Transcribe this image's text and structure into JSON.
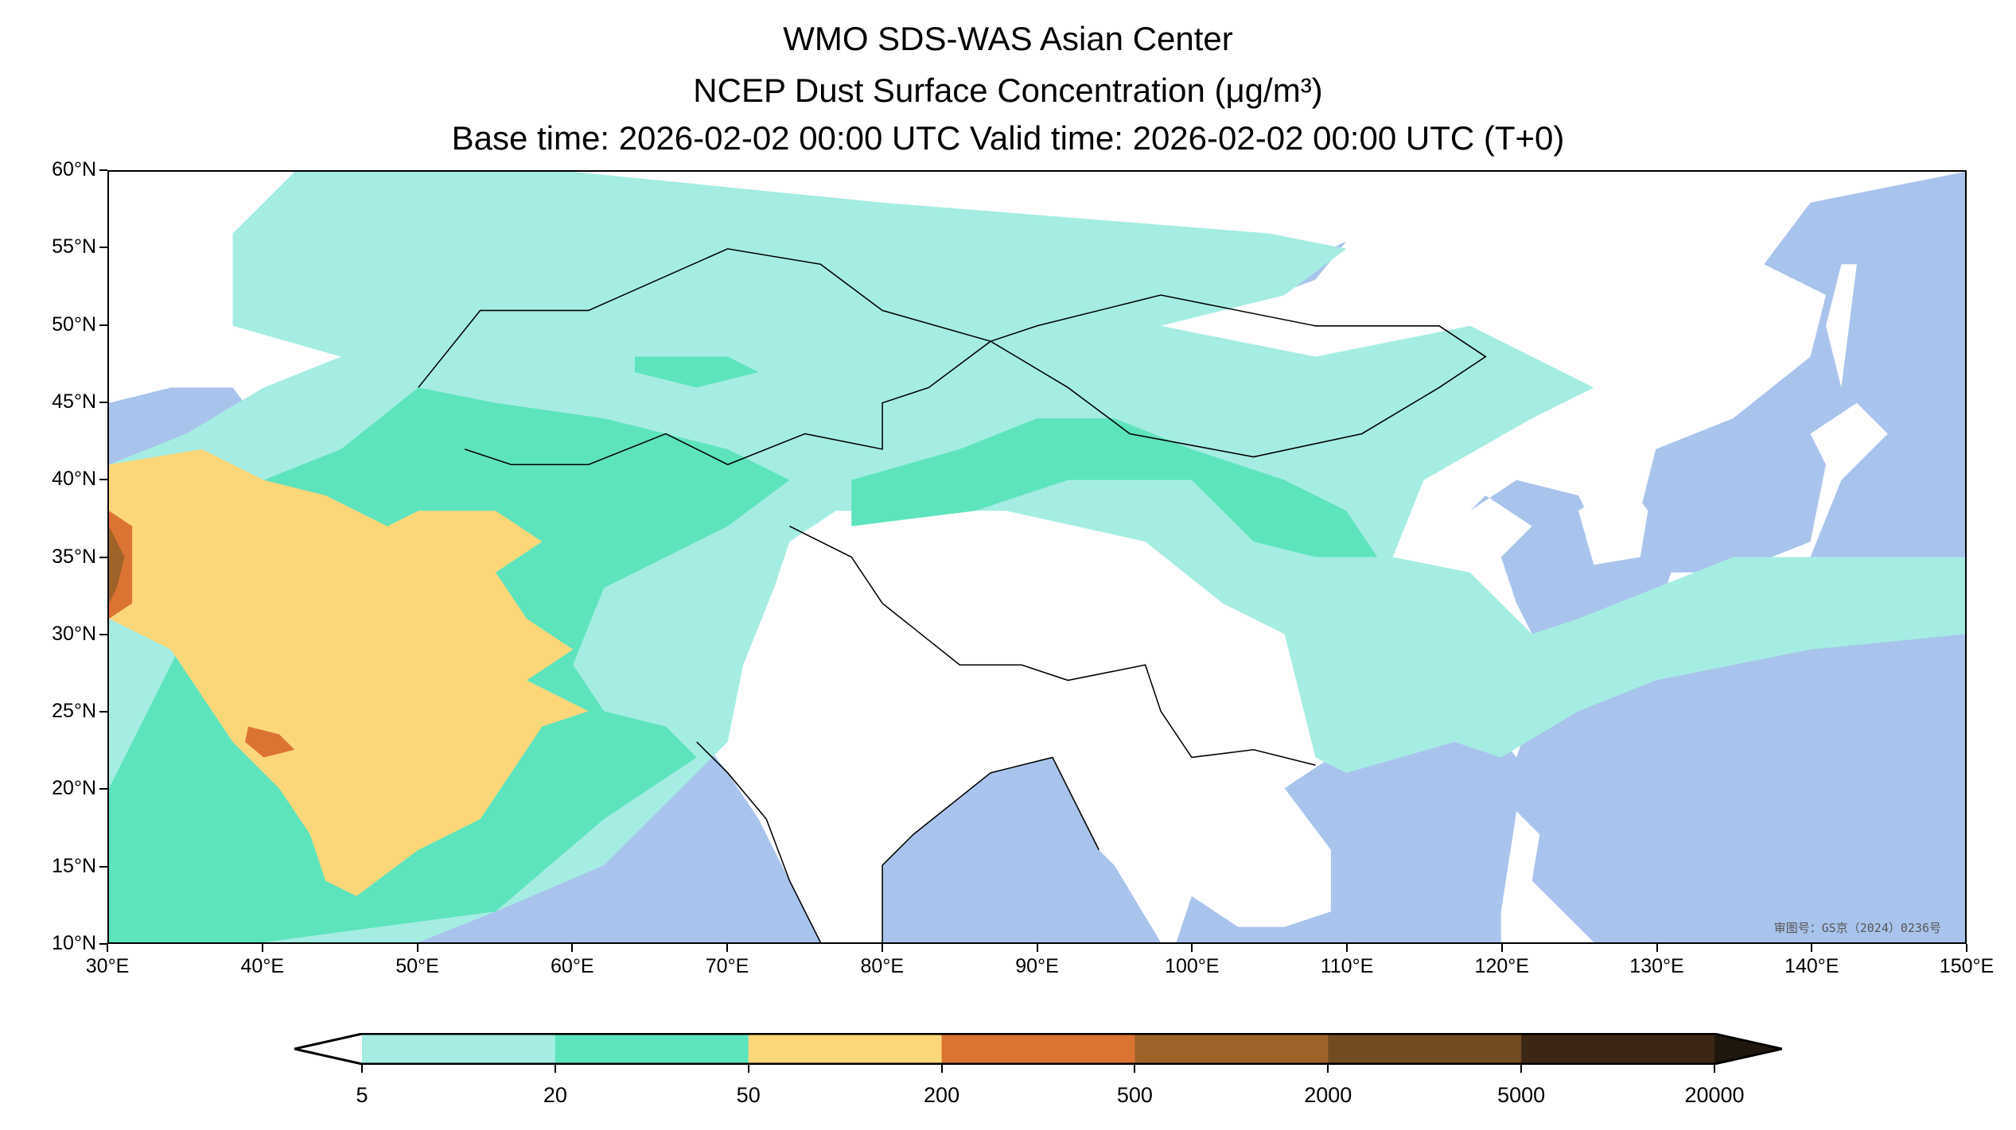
{
  "chart_data": {
    "type": "heatmap",
    "title": "WMO SDS-WAS Asian Center",
    "subtitle": "NCEP Dust Surface Concentration (μg/m³)",
    "time_line": "Base time: 2026-02-02 00:00 UTC Valid time: 2026-02-02 00:00 UTC (T+0)",
    "xlim": [
      30,
      150
    ],
    "ylim": [
      10,
      60
    ],
    "x_ticks": [
      "30°E",
      "40°E",
      "50°E",
      "60°E",
      "70°E",
      "80°E",
      "90°E",
      "100°E",
      "110°E",
      "120°E",
      "130°E",
      "140°E",
      "150°E"
    ],
    "y_ticks": [
      "10°N",
      "15°N",
      "20°N",
      "25°N",
      "30°N",
      "35°N",
      "40°N",
      "45°N",
      "50°N",
      "55°N",
      "60°N"
    ],
    "colorbar": {
      "levels": [
        "5",
        "20",
        "50",
        "200",
        "500",
        "2000",
        "5000",
        "20000"
      ],
      "colors": [
        "#a5ede3",
        "#5ee4bd",
        "#fbd77a",
        "#db7333",
        "#9e6329",
        "#724b22",
        "#3c2714"
      ],
      "extend_min_color": "#ffffff",
      "extend_max_color": "#20170d"
    },
    "ocean_color": "#a9c4ec",
    "watermark": "审图号：GS京（2024）0236号"
  }
}
